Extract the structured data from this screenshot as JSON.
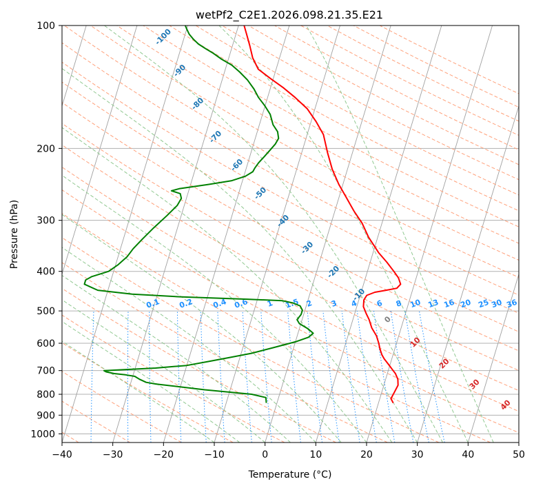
{
  "chart_data": {
    "type": "line",
    "title": "wetPf2_C2E1.2026.098.21.35.E21",
    "xlabel": "Temperature (°C)",
    "ylabel": "Pressure (hPa)",
    "xlim": [
      -40,
      50
    ],
    "ylim": [
      1050,
      100
    ],
    "y_scale": "log",
    "x_ticks": [
      -40,
      -30,
      -20,
      -10,
      0,
      10,
      20,
      30,
      40,
      50
    ],
    "y_ticks": [
      100,
      200,
      300,
      400,
      500,
      600,
      700,
      800,
      900,
      1000
    ],
    "grid": true,
    "legend": "none",
    "colors": {
      "temperature": "#ff0000",
      "dewpoint": "#008000",
      "skewed_isotherm": "#a0a0a0",
      "dry_adiabat": "#ffa07a",
      "moist_adiabat": "#90c890",
      "mixing_ratio": "#1e90ff"
    },
    "series": [
      {
        "values_x_label": "temperature",
        "points": [
          [
            22.9,
            840
          ],
          [
            22.2,
            820
          ],
          [
            22.5,
            790
          ],
          [
            22.8,
            760
          ],
          [
            22.4,
            735
          ],
          [
            21.6,
            712
          ],
          [
            20.7,
            695
          ],
          [
            19.8,
            678
          ],
          [
            18.5,
            655
          ],
          [
            17.8,
            640
          ],
          [
            17.1,
            620
          ],
          [
            16.5,
            600
          ],
          [
            15.6,
            575
          ],
          [
            14.2,
            550
          ],
          [
            13.2,
            525
          ],
          [
            12.3,
            508
          ],
          [
            11.3,
            488
          ],
          [
            11.0,
            470
          ],
          [
            11.3,
            458
          ],
          [
            12.7,
            450
          ],
          [
            14.8,
            445
          ],
          [
            16.8,
            440
          ],
          [
            17.3,
            430
          ],
          [
            16.5,
            415
          ],
          [
            15.2,
            400
          ],
          [
            13.3,
            380
          ],
          [
            11.1,
            360
          ],
          [
            8.2,
            330
          ],
          [
            6.1,
            305
          ],
          [
            3.8,
            285
          ],
          [
            1.6,
            265
          ],
          [
            -0.8,
            245
          ],
          [
            -3.0,
            225
          ],
          [
            -4.9,
            205
          ],
          [
            -6.8,
            185
          ],
          [
            -9.0,
            172
          ],
          [
            -11.5,
            160
          ],
          [
            -14.6,
            150
          ],
          [
            -17.5,
            142
          ],
          [
            -20.5,
            135
          ],
          [
            -23.5,
            128
          ],
          [
            -25.3,
            120
          ],
          [
            -26.6,
            112
          ],
          [
            -27.9,
            105
          ],
          [
            -28.9,
            100
          ]
        ]
      },
      {
        "values_x_label": "dewpoint",
        "points": [
          [
            -2.1,
            840
          ],
          [
            -2.5,
            815
          ],
          [
            -5.5,
            800
          ],
          [
            -15.0,
            780
          ],
          [
            -25.0,
            755
          ],
          [
            -27.0,
            748
          ],
          [
            -28.5,
            735
          ],
          [
            -29.6,
            723
          ],
          [
            -31.5,
            717
          ],
          [
            -33.8,
            712
          ],
          [
            -35.5,
            705
          ],
          [
            -36.0,
            700
          ],
          [
            -32.0,
            696
          ],
          [
            -26.0,
            690
          ],
          [
            -20.0,
            680
          ],
          [
            -16.0,
            665
          ],
          [
            -12.0,
            650
          ],
          [
            -8.0,
            635
          ],
          [
            -4.0,
            615
          ],
          [
            0.0,
            595
          ],
          [
            2.3,
            580
          ],
          [
            3.0,
            567
          ],
          [
            1.7,
            553
          ],
          [
            -0.3,
            537
          ],
          [
            -1.0,
            525
          ],
          [
            -0.5,
            510
          ],
          [
            -0.5,
            498
          ],
          [
            -1.2,
            486
          ],
          [
            -2.8,
            478
          ],
          [
            -5.0,
            472
          ],
          [
            -12.0,
            468
          ],
          [
            -25.0,
            462
          ],
          [
            -35.0,
            455
          ],
          [
            -42.0,
            445
          ],
          [
            -45.0,
            430
          ],
          [
            -45.0,
            420
          ],
          [
            -44.0,
            412
          ],
          [
            -41.0,
            400
          ],
          [
            -39.5,
            385
          ],
          [
            -38.2,
            368
          ],
          [
            -37.5,
            352
          ],
          [
            -36.3,
            334
          ],
          [
            -34.7,
            313
          ],
          [
            -32.8,
            292
          ],
          [
            -31.4,
            276
          ],
          [
            -31.0,
            265
          ],
          [
            -31.5,
            258
          ],
          [
            -33.4,
            254
          ],
          [
            -32.0,
            251
          ],
          [
            -26.5,
            245
          ],
          [
            -22.2,
            240
          ],
          [
            -19.7,
            234
          ],
          [
            -18.5,
            228
          ],
          [
            -18.3,
            223
          ],
          [
            -17.9,
            217
          ],
          [
            -17.2,
            210
          ],
          [
            -16.4,
            202
          ],
          [
            -15.7,
            195
          ],
          [
            -15.4,
            189
          ],
          [
            -16.0,
            182
          ],
          [
            -17.3,
            175
          ],
          [
            -18.5,
            165
          ],
          [
            -20.1,
            157
          ],
          [
            -21.8,
            150
          ],
          [
            -23.2,
            143
          ],
          [
            -25.0,
            136
          ],
          [
            -27.0,
            130
          ],
          [
            -29.0,
            125
          ],
          [
            -31.3,
            121
          ],
          [
            -33.3,
            117
          ],
          [
            -35.1,
            114
          ],
          [
            -36.8,
            111
          ],
          [
            -38.1,
            108
          ],
          [
            -39.2,
            105
          ],
          [
            -40.0,
            102
          ],
          [
            -40.5,
            100
          ]
        ]
      }
    ],
    "dry_adiabat_labels": [
      "-100",
      "-90",
      "-80",
      "-70",
      "-60",
      "-50",
      "-40",
      "-30",
      "-20",
      "-10"
    ],
    "moist_adiabat_labels": [
      "0",
      "10",
      "20",
      "30",
      "40"
    ],
    "mixing_ratio_labels": [
      "0.1",
      "0.2",
      "0.4",
      "0.6",
      "1",
      "1.5",
      "2",
      "3",
      "4",
      "6",
      "8",
      "10",
      "13",
      "16",
      "20",
      "25",
      "30",
      "36"
    ]
  }
}
